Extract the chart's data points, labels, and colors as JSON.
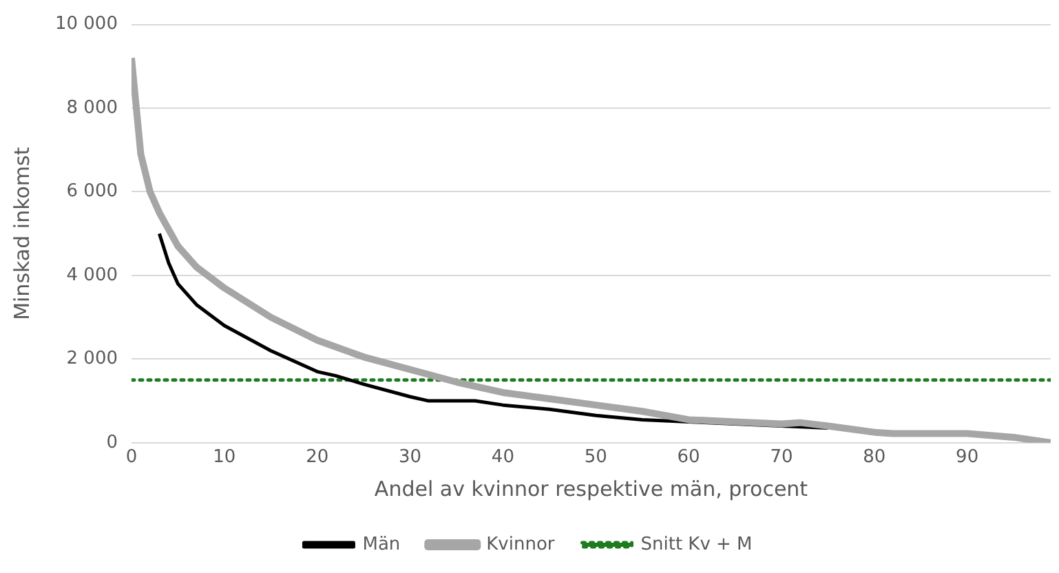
{
  "chart_data": {
    "type": "line",
    "xlabel": "Andel av kvinnor respektive män, procent",
    "ylabel": "Minskad inkomst",
    "xlim": [
      0,
      99
    ],
    "xticks": [
      0,
      10,
      20,
      30,
      40,
      50,
      60,
      70,
      80,
      90
    ],
    "ylim": [
      0,
      10000
    ],
    "yticks": [
      {
        "value": 0,
        "label": "0"
      },
      {
        "value": 2000,
        "label": "2 000"
      },
      {
        "value": 4000,
        "label": "4 000"
      },
      {
        "value": 6000,
        "label": "6 000"
      },
      {
        "value": 8000,
        "label": "8 000"
      },
      {
        "value": 10000,
        "label": "10 000"
      }
    ],
    "grid": "y",
    "legend": "bottom",
    "marker": "none",
    "series": [
      {
        "name": "Män",
        "color": "#000000",
        "line_style": "solid",
        "x": [
          3,
          4,
          5,
          7,
          10,
          15,
          20,
          22,
          25,
          30,
          32,
          37,
          40,
          45,
          50,
          55,
          60,
          65,
          70,
          75
        ],
        "values": [
          5000,
          4300,
          3800,
          3300,
          2800,
          2200,
          1700,
          1600,
          1400,
          1100,
          1000,
          1000,
          900,
          800,
          650,
          550,
          500,
          450,
          400,
          350
        ]
      },
      {
        "name": "Kvinnor",
        "color": "#a6a6a6",
        "line_style": "solid",
        "x": [
          0,
          1,
          2,
          3,
          5,
          7,
          10,
          15,
          20,
          25,
          30,
          35,
          40,
          45,
          50,
          55,
          60,
          65,
          70,
          72,
          75,
          80,
          82,
          90,
          95,
          99
        ],
        "values": [
          9200,
          6900,
          6000,
          5500,
          4700,
          4200,
          3700,
          3000,
          2450,
          2050,
          1750,
          1450,
          1200,
          1050,
          900,
          750,
          550,
          500,
          450,
          480,
          400,
          250,
          220,
          220,
          130,
          0
        ]
      },
      {
        "name": "Snitt Kv + M",
        "color": "#1e7b1e",
        "line_style": "dotted",
        "x": [
          0,
          99
        ],
        "values": [
          1500,
          1500
        ]
      }
    ]
  }
}
